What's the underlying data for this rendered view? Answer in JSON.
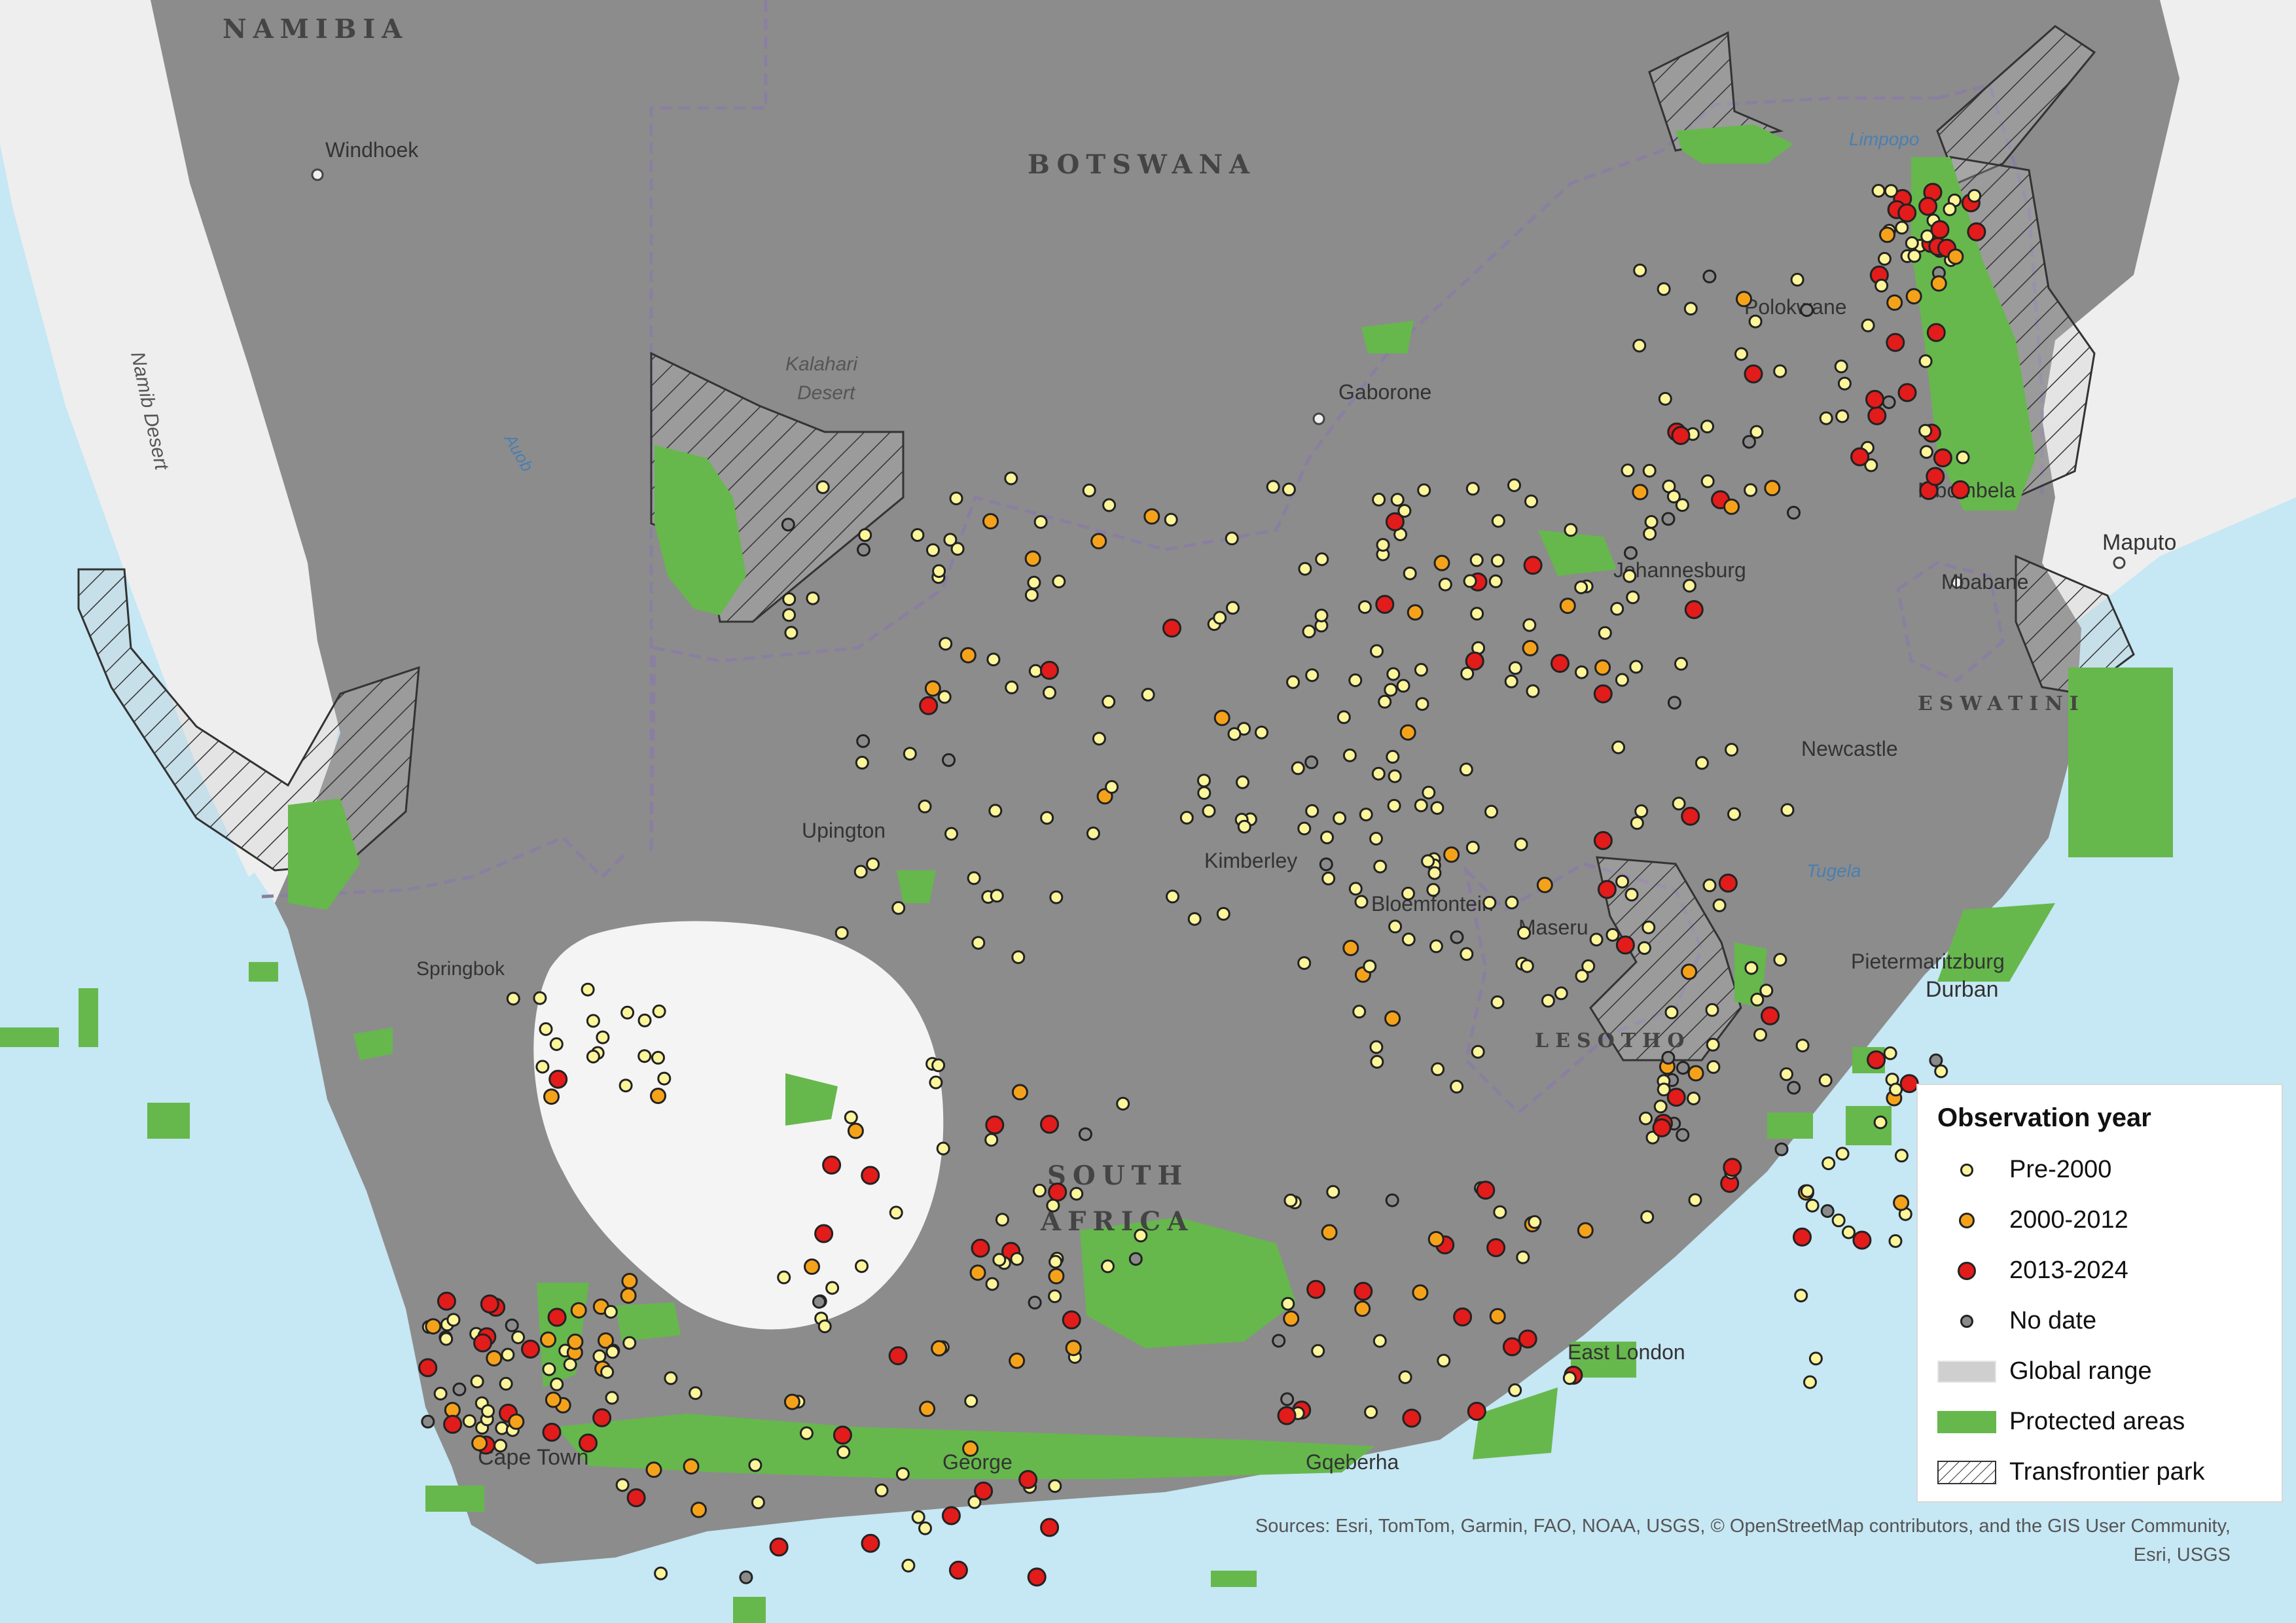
{
  "map": {
    "country_labels": [
      "NAMIBIA",
      "BOTSWANA",
      "SOUTH",
      "AFRICA",
      "LESOTHO",
      "ESWATINI"
    ],
    "city_labels": [
      "Windhoek",
      "Gaborone",
      "Polokwane",
      "Mbombela",
      "Maputo",
      "Mbabane",
      "Johannesburg",
      "Newcastle",
      "Upington",
      "Kimberley",
      "Bloemfontein",
      "Maseru",
      "Springbok",
      "Pietermaritzburg",
      "Durban",
      "East London",
      "Cape Town",
      "George",
      "Gqeberha"
    ],
    "region_labels": [
      "Kalahari",
      "Desert",
      "Namib Desert"
    ],
    "water_labels": [
      "Limpopo",
      "Auob",
      "Tugela"
    ],
    "colors": {
      "ocean": "#c6e7f4",
      "land_in_range": "#8c8c8c",
      "land_out_of_range": "#eeeeee",
      "protected": "#66b84c",
      "pre2000": "#fdf59a",
      "y2000_2012": "#f5a21b",
      "y2013_2024": "#e21b1b",
      "nodate": "#8a8a8a"
    }
  },
  "legend": {
    "title": "Observation year",
    "items": [
      "Pre-2000",
      "2000-2012",
      "2013-2024",
      "No date",
      "Global range",
      "Protected areas",
      "Transfrontier park"
    ]
  },
  "attribution": {
    "line1": "Sources: Esri, TomTom, Garmin, FAO, NOAA, USGS, © OpenStreetMap contributors, and the GIS User Community,",
    "line2": "Esri, USGS"
  }
}
